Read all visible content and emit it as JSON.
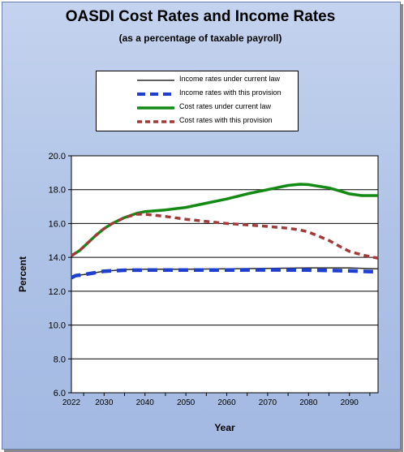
{
  "chart_data": {
    "type": "line",
    "title": "OASDI Cost Rates and Income Rates",
    "subtitle": "(as a percentage of taxable payroll)",
    "xlabel": "Year",
    "ylabel": "Percent",
    "xlim": [
      2022,
      2097
    ],
    "ylim": [
      6.0,
      20.0
    ],
    "y_ticks": [
      "6.0",
      "8.0",
      "10.0",
      "12.0",
      "14.0",
      "16.0",
      "18.0",
      "20.0"
    ],
    "x_ticks": [
      "2022",
      "2030",
      "2040",
      "2050",
      "2060",
      "2070",
      "2080",
      "2090"
    ],
    "grid": "horizontal",
    "legend_position": "top-center",
    "series": [
      {
        "name": "Income rates under current law",
        "color": "#2b2b2b",
        "style": "solid-thin",
        "x": [
          2022,
          2023,
          2025,
          2028,
          2030,
          2035,
          2040,
          2050,
          2060,
          2070,
          2080,
          2090,
          2094,
          2097
        ],
        "y": [
          12.8,
          12.92,
          12.98,
          13.1,
          13.18,
          13.28,
          13.3,
          13.3,
          13.32,
          13.35,
          13.38,
          13.38,
          13.34,
          13.32
        ]
      },
      {
        "name": "Income rates with this provision",
        "color": "#1f3fd0",
        "style": "dashed-thick",
        "x": [
          2022,
          2023,
          2025,
          2028,
          2030,
          2035,
          2040,
          2050,
          2060,
          2070,
          2080,
          2090,
          2094,
          2097
        ],
        "y": [
          12.8,
          12.92,
          12.98,
          13.1,
          13.18,
          13.24,
          13.25,
          13.25,
          13.25,
          13.26,
          13.25,
          13.2,
          13.17,
          13.15
        ]
      },
      {
        "name": "Cost rates under current law",
        "color": "#138a13",
        "style": "solid-thick",
        "x": [
          2022,
          2024,
          2026,
          2028,
          2030,
          2032,
          2035,
          2038,
          2040,
          2045,
          2050,
          2055,
          2060,
          2065,
          2070,
          2075,
          2078,
          2080,
          2085,
          2088,
          2090,
          2093,
          2097
        ],
        "y": [
          14.1,
          14.4,
          14.85,
          15.3,
          15.7,
          16.0,
          16.35,
          16.6,
          16.7,
          16.8,
          16.95,
          17.2,
          17.45,
          17.75,
          18.0,
          18.25,
          18.32,
          18.3,
          18.1,
          17.9,
          17.75,
          17.65,
          17.65
        ]
      },
      {
        "name": "Cost rates with this provision",
        "color": "#a33a3a",
        "style": "dashed-thick",
        "x": [
          2022,
          2024,
          2026,
          2028,
          2030,
          2032,
          2035,
          2038,
          2040,
          2045,
          2050,
          2055,
          2060,
          2065,
          2070,
          2075,
          2078,
          2080,
          2085,
          2088,
          2090,
          2093,
          2097
        ],
        "y": [
          14.1,
          14.4,
          14.85,
          15.3,
          15.7,
          16.0,
          16.35,
          16.55,
          16.55,
          16.42,
          16.25,
          16.12,
          16.0,
          15.92,
          15.83,
          15.72,
          15.62,
          15.5,
          15.0,
          14.6,
          14.35,
          14.15,
          13.95
        ]
      }
    ]
  }
}
